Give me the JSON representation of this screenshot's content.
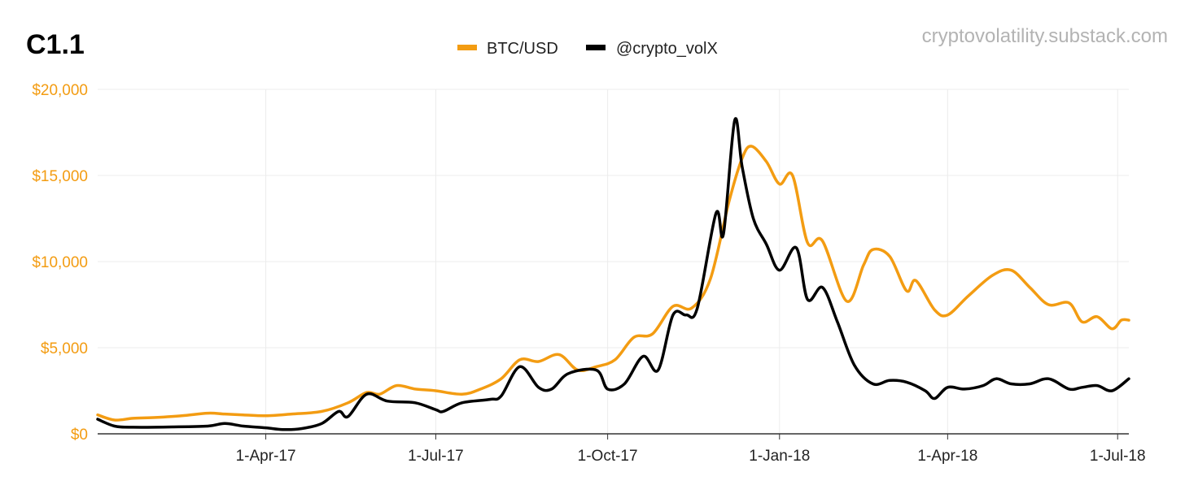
{
  "chart_title": "C1.1",
  "source_label": "cryptovolatility.substack.com",
  "chart_data": {
    "type": "line",
    "title": "C1.1",
    "xlabel": "",
    "ylabel": "",
    "legend_position": "top-center",
    "grid": true,
    "x_range": [
      "2017-01-01",
      "2018-07-07"
    ],
    "ylim": [
      0,
      20000
    ],
    "y_ticks": [
      {
        "value": 0,
        "label": "$0"
      },
      {
        "value": 5000,
        "label": "$5,000"
      },
      {
        "value": 10000,
        "label": "$10,000"
      },
      {
        "value": 15000,
        "label": "$15,000"
      },
      {
        "value": 20000,
        "label": "$20,000"
      }
    ],
    "x_ticks": [
      {
        "date": "2017-04-01",
        "label": "1-Apr-17"
      },
      {
        "date": "2017-07-01",
        "label": "1-Jul-17"
      },
      {
        "date": "2017-10-01",
        "label": "1-Oct-17"
      },
      {
        "date": "2018-01-01",
        "label": "1-Jan-18"
      },
      {
        "date": "2018-04-01",
        "label": "1-Apr-18"
      },
      {
        "date": "2018-07-01",
        "label": "1-Jul-18"
      }
    ],
    "series": [
      {
        "name": "BTC/USD",
        "color": "#f39c12",
        "points": [
          [
            "2017-01-01",
            1100
          ],
          [
            "2017-01-10",
            800
          ],
          [
            "2017-01-20",
            900
          ],
          [
            "2017-02-01",
            950
          ],
          [
            "2017-02-15",
            1050
          ],
          [
            "2017-03-01",
            1200
          ],
          [
            "2017-03-10",
            1150
          ],
          [
            "2017-03-20",
            1100
          ],
          [
            "2017-04-01",
            1050
          ],
          [
            "2017-04-15",
            1150
          ],
          [
            "2017-05-01",
            1300
          ],
          [
            "2017-05-15",
            1800
          ],
          [
            "2017-05-25",
            2400
          ],
          [
            "2017-06-01",
            2300
          ],
          [
            "2017-06-10",
            2800
          ],
          [
            "2017-06-20",
            2600
          ],
          [
            "2017-07-01",
            2500
          ],
          [
            "2017-07-15",
            2300
          ],
          [
            "2017-07-25",
            2600
          ],
          [
            "2017-08-05",
            3200
          ],
          [
            "2017-08-15",
            4300
          ],
          [
            "2017-08-25",
            4200
          ],
          [
            "2017-09-05",
            4600
          ],
          [
            "2017-09-15",
            3700
          ],
          [
            "2017-09-25",
            3900
          ],
          [
            "2017-10-05",
            4300
          ],
          [
            "2017-10-15",
            5600
          ],
          [
            "2017-10-25",
            5800
          ],
          [
            "2017-11-05",
            7400
          ],
          [
            "2017-11-15",
            7300
          ],
          [
            "2017-11-25",
            9000
          ],
          [
            "2017-12-05",
            13500
          ],
          [
            "2017-12-12",
            16000
          ],
          [
            "2017-12-17",
            16700
          ],
          [
            "2017-12-25",
            15800
          ],
          [
            "2018-01-01",
            14500
          ],
          [
            "2018-01-08",
            15000
          ],
          [
            "2018-01-16",
            11100
          ],
          [
            "2018-01-24",
            11200
          ],
          [
            "2018-02-06",
            7700
          ],
          [
            "2018-02-15",
            9800
          ],
          [
            "2018-02-20",
            10700
          ],
          [
            "2018-03-01",
            10300
          ],
          [
            "2018-03-10",
            8300
          ],
          [
            "2018-03-15",
            8900
          ],
          [
            "2018-03-25",
            7200
          ],
          [
            "2018-04-01",
            6900
          ],
          [
            "2018-04-12",
            8000
          ],
          [
            "2018-04-25",
            9200
          ],
          [
            "2018-05-05",
            9500
          ],
          [
            "2018-05-15",
            8500
          ],
          [
            "2018-05-25",
            7500
          ],
          [
            "2018-06-05",
            7600
          ],
          [
            "2018-06-12",
            6500
          ],
          [
            "2018-06-20",
            6800
          ],
          [
            "2018-06-28",
            6100
          ],
          [
            "2018-07-03",
            6600
          ],
          [
            "2018-07-07",
            6600
          ]
        ]
      },
      {
        "name": "@crypto_volX",
        "color": "#000000",
        "points": [
          [
            "2017-01-01",
            850
          ],
          [
            "2017-01-10",
            450
          ],
          [
            "2017-01-20",
            380
          ],
          [
            "2017-02-10",
            400
          ],
          [
            "2017-03-01",
            450
          ],
          [
            "2017-03-10",
            600
          ],
          [
            "2017-03-20",
            450
          ],
          [
            "2017-04-01",
            350
          ],
          [
            "2017-04-10",
            250
          ],
          [
            "2017-04-20",
            300
          ],
          [
            "2017-05-01",
            600
          ],
          [
            "2017-05-10",
            1300
          ],
          [
            "2017-05-15",
            1000
          ],
          [
            "2017-05-25",
            2300
          ],
          [
            "2017-06-05",
            1900
          ],
          [
            "2017-06-20",
            1800
          ],
          [
            "2017-07-01",
            1400
          ],
          [
            "2017-07-05",
            1300
          ],
          [
            "2017-07-15",
            1800
          ],
          [
            "2017-07-30",
            2000
          ],
          [
            "2017-08-05",
            2200
          ],
          [
            "2017-08-15",
            3900
          ],
          [
            "2017-08-25",
            2700
          ],
          [
            "2017-09-01",
            2600
          ],
          [
            "2017-09-10",
            3500
          ],
          [
            "2017-09-25",
            3700
          ],
          [
            "2017-10-01",
            2600
          ],
          [
            "2017-10-10",
            2900
          ],
          [
            "2017-10-20",
            4500
          ],
          [
            "2017-10-28",
            3700
          ],
          [
            "2017-11-05",
            6900
          ],
          [
            "2017-11-12",
            6900
          ],
          [
            "2017-11-18",
            7300
          ],
          [
            "2017-11-28",
            12800
          ],
          [
            "2017-12-02",
            11600
          ],
          [
            "2017-12-08",
            18200
          ],
          [
            "2017-12-12",
            15500
          ],
          [
            "2017-12-18",
            12500
          ],
          [
            "2017-12-25",
            11000
          ],
          [
            "2018-01-01",
            9500
          ],
          [
            "2018-01-10",
            10800
          ],
          [
            "2018-01-16",
            7800
          ],
          [
            "2018-01-24",
            8500
          ],
          [
            "2018-02-01",
            6500
          ],
          [
            "2018-02-10",
            4000
          ],
          [
            "2018-02-20",
            2900
          ],
          [
            "2018-03-01",
            3100
          ],
          [
            "2018-03-10",
            3000
          ],
          [
            "2018-03-20",
            2500
          ],
          [
            "2018-03-25",
            2050
          ],
          [
            "2018-04-01",
            2700
          ],
          [
            "2018-04-10",
            2600
          ],
          [
            "2018-04-20",
            2800
          ],
          [
            "2018-04-27",
            3200
          ],
          [
            "2018-05-05",
            2900
          ],
          [
            "2018-05-15",
            2900
          ],
          [
            "2018-05-25",
            3200
          ],
          [
            "2018-06-05",
            2600
          ],
          [
            "2018-06-12",
            2700
          ],
          [
            "2018-06-20",
            2800
          ],
          [
            "2018-06-28",
            2500
          ],
          [
            "2018-07-07",
            3200
          ]
        ]
      }
    ]
  }
}
